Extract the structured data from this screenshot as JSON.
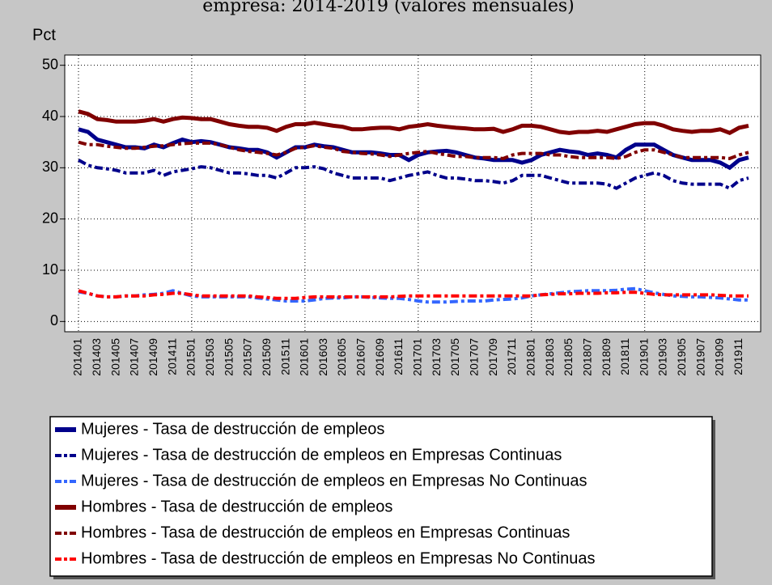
{
  "chart_data": {
    "type": "line",
    "title": "empresa: 2014-2019 (valores mensuales)",
    "y_label": "Pct",
    "categories": [
      "201401",
      null,
      "201403",
      null,
      "201405",
      null,
      "201407",
      null,
      "201409",
      null,
      "201411",
      null,
      "201501",
      null,
      "201503",
      null,
      "201505",
      null,
      "201507",
      null,
      "201509",
      null,
      "201511",
      null,
      "201601",
      null,
      "201603",
      null,
      "201605",
      null,
      "201607",
      null,
      "201609",
      null,
      "201611",
      null,
      "201701",
      null,
      "201703",
      null,
      "201705",
      null,
      "201707",
      null,
      "201709",
      null,
      "201711",
      null,
      "201801",
      null,
      "201803",
      null,
      "201805",
      null,
      "201807",
      null,
      "201809",
      null,
      "201811",
      null,
      "201901",
      null,
      "201903",
      null,
      "201905",
      null,
      "201907",
      null,
      "201909",
      null,
      "201911",
      null
    ],
    "ylim": [
      -2,
      52
    ],
    "yticks": [
      0,
      10,
      20,
      30,
      40,
      50
    ],
    "grid": true,
    "series": [
      {
        "name": "Mujeres - Tasa de destrucción de empleos",
        "color": "#00008b",
        "dash": "solid",
        "values": [
          37.5,
          37,
          35.5,
          35,
          34.5,
          34,
          34,
          33.8,
          34.5,
          34,
          34.8,
          35.5,
          35,
          35.2,
          35,
          34.5,
          34,
          33.8,
          33.5,
          33.5,
          33,
          32,
          33,
          34,
          34,
          34.5,
          34.2,
          34,
          33.5,
          33,
          33,
          33,
          32.8,
          32.5,
          32.5,
          31.5,
          32.5,
          33,
          33.2,
          33.3,
          33,
          32.5,
          32,
          31.8,
          31.5,
          31.5,
          31.5,
          31,
          31.5,
          32.5,
          33,
          33.5,
          33.2,
          33,
          32.5,
          32.8,
          32.5,
          32,
          33.5,
          34.5,
          34.5,
          34.5,
          33.5,
          32.5,
          32,
          31.5,
          31.5,
          31.5,
          31,
          30,
          31.5,
          32
        ]
      },
      {
        "name": "Mujeres - Tasa de destrucción de empleos en Empresas Continuas",
        "color": "#00008b",
        "dash": "dashed",
        "values": [
          31.5,
          30.5,
          30,
          29.8,
          29.5,
          29,
          29,
          29,
          29.5,
          28.5,
          29.2,
          29.5,
          29.8,
          30.2,
          30,
          29.5,
          29,
          29,
          28.8,
          28.5,
          28.5,
          28,
          29,
          30,
          30,
          30.2,
          29.8,
          29,
          28.5,
          28,
          28,
          28,
          28,
          27.5,
          28,
          28.5,
          28.8,
          29.2,
          28.5,
          28,
          28,
          27.8,
          27.5,
          27.5,
          27.3,
          27,
          27.5,
          28.5,
          28.5,
          28.5,
          28,
          27.5,
          27,
          27,
          27,
          27,
          26.8,
          26,
          27,
          28,
          28.5,
          29,
          28.5,
          27.5,
          27,
          26.8,
          26.8,
          26.8,
          26.8,
          26,
          27.5,
          28
        ]
      },
      {
        "name": "Mujeres - Tasa de destrucción de empleos en Empresas No Continuas",
        "color": "#3366ff",
        "dash": "dashed",
        "values": [
          5.8,
          5.5,
          5,
          4.8,
          4.8,
          5,
          5,
          5.2,
          5.3,
          5.5,
          6,
          5.5,
          5,
          4.8,
          4.8,
          4.8,
          4.8,
          4.8,
          4.8,
          4.6,
          4.4,
          4.2,
          4,
          4,
          4,
          4.2,
          4.5,
          4.6,
          4.6,
          4.8,
          4.8,
          4.7,
          4.6,
          4.5,
          4.5,
          4.3,
          4,
          3.8,
          3.8,
          3.8,
          3.9,
          4,
          4,
          4,
          4.2,
          4.3,
          4.4,
          4.6,
          5,
          5.2,
          5.4,
          5.6,
          5.8,
          5.9,
          6,
          6,
          6,
          6.1,
          6.3,
          6.4,
          6,
          5.6,
          5.3,
          5,
          4.9,
          4.8,
          4.8,
          4.7,
          4.6,
          4.4,
          4.2,
          4.2
        ]
      },
      {
        "name": "Hombres - Tasa de destrucción de empleos",
        "color": "#800000",
        "dash": "solid",
        "values": [
          41,
          40.5,
          39.5,
          39.3,
          39,
          39,
          39,
          39.2,
          39.5,
          39,
          39.5,
          39.8,
          39.7,
          39.5,
          39.5,
          39,
          38.5,
          38.2,
          38,
          38,
          37.8,
          37.2,
          38,
          38.5,
          38.5,
          38.8,
          38.5,
          38.2,
          38,
          37.5,
          37.5,
          37.7,
          37.8,
          37.8,
          37.5,
          38,
          38.2,
          38.5,
          38.2,
          38,
          37.8,
          37.7,
          37.5,
          37.5,
          37.6,
          37,
          37.5,
          38.2,
          38.2,
          38,
          37.5,
          37,
          36.8,
          37,
          37,
          37.2,
          37,
          37.5,
          38,
          38.5,
          38.7,
          38.7,
          38.2,
          37.5,
          37.2,
          37,
          37.2,
          37.2,
          37.5,
          36.8,
          37.8,
          38.2
        ]
      },
      {
        "name": "Hombres - Tasa de destrucción de empleos en Empresas Continuas",
        "color": "#800000",
        "dash": "dashed",
        "values": [
          35,
          34.5,
          34.5,
          34.2,
          34,
          33.8,
          33.8,
          34,
          34.2,
          34.3,
          34.5,
          34.7,
          34.8,
          34.8,
          34.8,
          34.5,
          34,
          33.5,
          33.2,
          33,
          32.8,
          32.5,
          33,
          33.8,
          34,
          34.3,
          34,
          33.8,
          33.2,
          33,
          32.8,
          32.7,
          32.5,
          32.2,
          32.5,
          32.8,
          33,
          33.2,
          32.8,
          32.5,
          32.2,
          32.2,
          32,
          32,
          32,
          31.8,
          32.5,
          32.8,
          32.8,
          32.8,
          32.5,
          32.5,
          32.2,
          32,
          32,
          32,
          32,
          31.8,
          32.2,
          33,
          33.5,
          33.5,
          33,
          32.5,
          32,
          32,
          32,
          32,
          32,
          31.8,
          32.5,
          33
        ]
      },
      {
        "name": "Hombres - Tasa de destrucción de empleos en Empresas No Continuas",
        "color": "#ff0000",
        "dash": "dashed",
        "values": [
          6,
          5.5,
          5,
          4.8,
          4.8,
          5,
          5,
          5,
          5.2,
          5.3,
          5.5,
          5.5,
          5.2,
          5,
          5,
          5,
          5,
          5,
          5,
          4.8,
          4.7,
          4.5,
          4.5,
          4.5,
          4.7,
          4.8,
          4.8,
          4.8,
          4.8,
          4.8,
          4.8,
          4.8,
          4.8,
          4.8,
          4.9,
          5,
          5,
          5,
          5,
          5,
          5,
          5,
          5,
          5,
          5,
          5,
          5,
          5,
          5,
          5.2,
          5.3,
          5.4,
          5.4,
          5.5,
          5.5,
          5.5,
          5.6,
          5.6,
          5.7,
          5.7,
          5.5,
          5.3,
          5.2,
          5.2,
          5.2,
          5.2,
          5.2,
          5.2,
          5.1,
          5,
          5,
          5
        ]
      }
    ]
  }
}
